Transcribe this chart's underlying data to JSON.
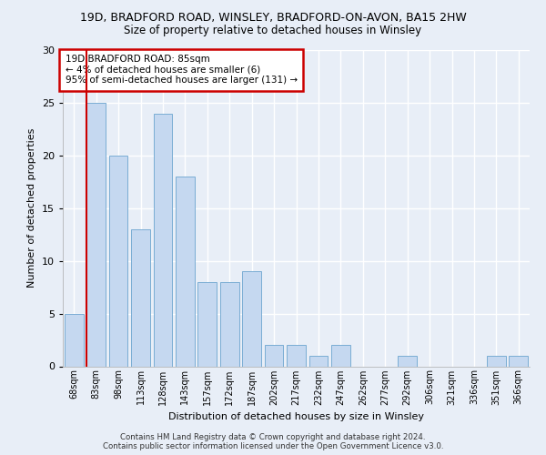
{
  "title1": "19D, BRADFORD ROAD, WINSLEY, BRADFORD-ON-AVON, BA15 2HW",
  "title2": "Size of property relative to detached houses in Winsley",
  "xlabel": "Distribution of detached houses by size in Winsley",
  "ylabel": "Number of detached properties",
  "categories": [
    "68sqm",
    "83sqm",
    "98sqm",
    "113sqm",
    "128sqm",
    "143sqm",
    "157sqm",
    "172sqm",
    "187sqm",
    "202sqm",
    "217sqm",
    "232sqm",
    "247sqm",
    "262sqm",
    "277sqm",
    "292sqm",
    "306sqm",
    "321sqm",
    "336sqm",
    "351sqm",
    "366sqm"
  ],
  "values": [
    5,
    25,
    20,
    13,
    24,
    18,
    8,
    8,
    9,
    2,
    2,
    1,
    2,
    0,
    0,
    1,
    0,
    0,
    0,
    1,
    1
  ],
  "bar_color": "#c5d8f0",
  "bar_edge_color": "#7aadd4",
  "vline_color": "#cc0000",
  "vline_x": 0.575,
  "annotation_text": "19D BRADFORD ROAD: 85sqm\n← 4% of detached houses are smaller (6)\n95% of semi-detached houses are larger (131) →",
  "annotation_box_color": "#ffffff",
  "annotation_box_edge": "#cc0000",
  "ylim": [
    0,
    30
  ],
  "yticks": [
    0,
    5,
    10,
    15,
    20,
    25,
    30
  ],
  "footer1": "Contains HM Land Registry data © Crown copyright and database right 2024.",
  "footer2": "Contains public sector information licensed under the Open Government Licence v3.0.",
  "bg_color": "#e8eef7",
  "plot_bg": "#e8eef7"
}
